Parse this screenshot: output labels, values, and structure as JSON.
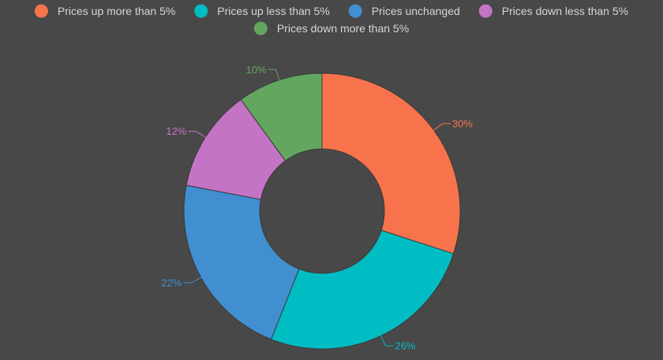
{
  "chart_data": {
    "type": "pie",
    "variant": "donut",
    "categories": [
      "Prices up more than 5%",
      "Prices up less than 5%",
      "Prices unchanged",
      "Prices down less than 5%",
      "Prices down more than 5%"
    ],
    "values": [
      30,
      26,
      22,
      12,
      10
    ],
    "value_labels": [
      "30%",
      "26%",
      "22%",
      "12%",
      "10%"
    ],
    "colors": [
      "#f7734c",
      "#00bdc4",
      "#418fd1",
      "#c474c4",
      "#63a660"
    ],
    "legend_placement": "top",
    "background": "#484848"
  }
}
